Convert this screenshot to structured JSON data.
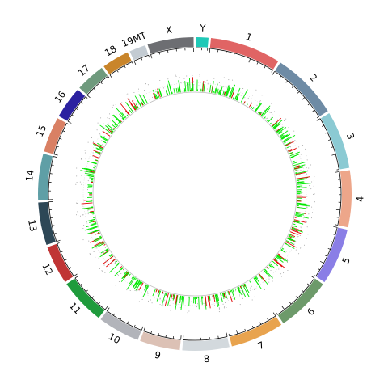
{
  "chart_data": {
    "type": "circos",
    "title": "",
    "start_angle_deg": 0,
    "direction": "clockwise",
    "chromosomes": [
      {
        "name": "Y",
        "size": 15,
        "color": "#20c9b7"
      },
      {
        "name": "1",
        "size": 86,
        "color": "#e06464"
      },
      {
        "name": "2",
        "size": 82,
        "color": "#6e8ba5"
      },
      {
        "name": "3",
        "size": 70,
        "color": "#8bcad3"
      },
      {
        "name": "4",
        "size": 69,
        "color": "#eda68a"
      },
      {
        "name": "5",
        "size": 69,
        "color": "#8a7ee6"
      },
      {
        "name": "6",
        "size": 67,
        "color": "#6d9a6a"
      },
      {
        "name": "7",
        "size": 65,
        "color": "#e8a34e"
      },
      {
        "name": "8",
        "size": 57,
        "color": "#d3d9dd"
      },
      {
        "name": "9",
        "size": 49,
        "color": "#dcc1b5"
      },
      {
        "name": "10",
        "size": 51,
        "color": "#b2b4ba"
      },
      {
        "name": "11",
        "size": 56,
        "color": "#1f9b3c"
      },
      {
        "name": "12",
        "size": 47,
        "color": "#c03535"
      },
      {
        "name": "13",
        "size": 52,
        "color": "#2d4756"
      },
      {
        "name": "14",
        "size": 56,
        "color": "#5f9fa6"
      },
      {
        "name": "15",
        "size": 43,
        "color": "#d98064"
      },
      {
        "name": "16",
        "size": 39,
        "color": "#2b21a0"
      },
      {
        "name": "17",
        "size": 36,
        "color": "#6f9a7d"
      },
      {
        "name": "18",
        "size": 33,
        "color": "#c9852a"
      },
      {
        "name": "19MT",
        "size": 20,
        "color": "#c3cbd2"
      },
      {
        "name": "X",
        "size": 56,
        "color": "#6d6e72"
      }
    ],
    "tracks": [
      {
        "name": "",
        "color": "#00e800",
        "kind": "bar"
      },
      {
        "name": "",
        "color": "#e00000",
        "kind": "bar"
      },
      {
        "name": "",
        "color": "#999999",
        "kind": "point"
      }
    ],
    "colors": {
      "ticks": "#000000",
      "inner_circle": "#bbbbbb"
    }
  }
}
